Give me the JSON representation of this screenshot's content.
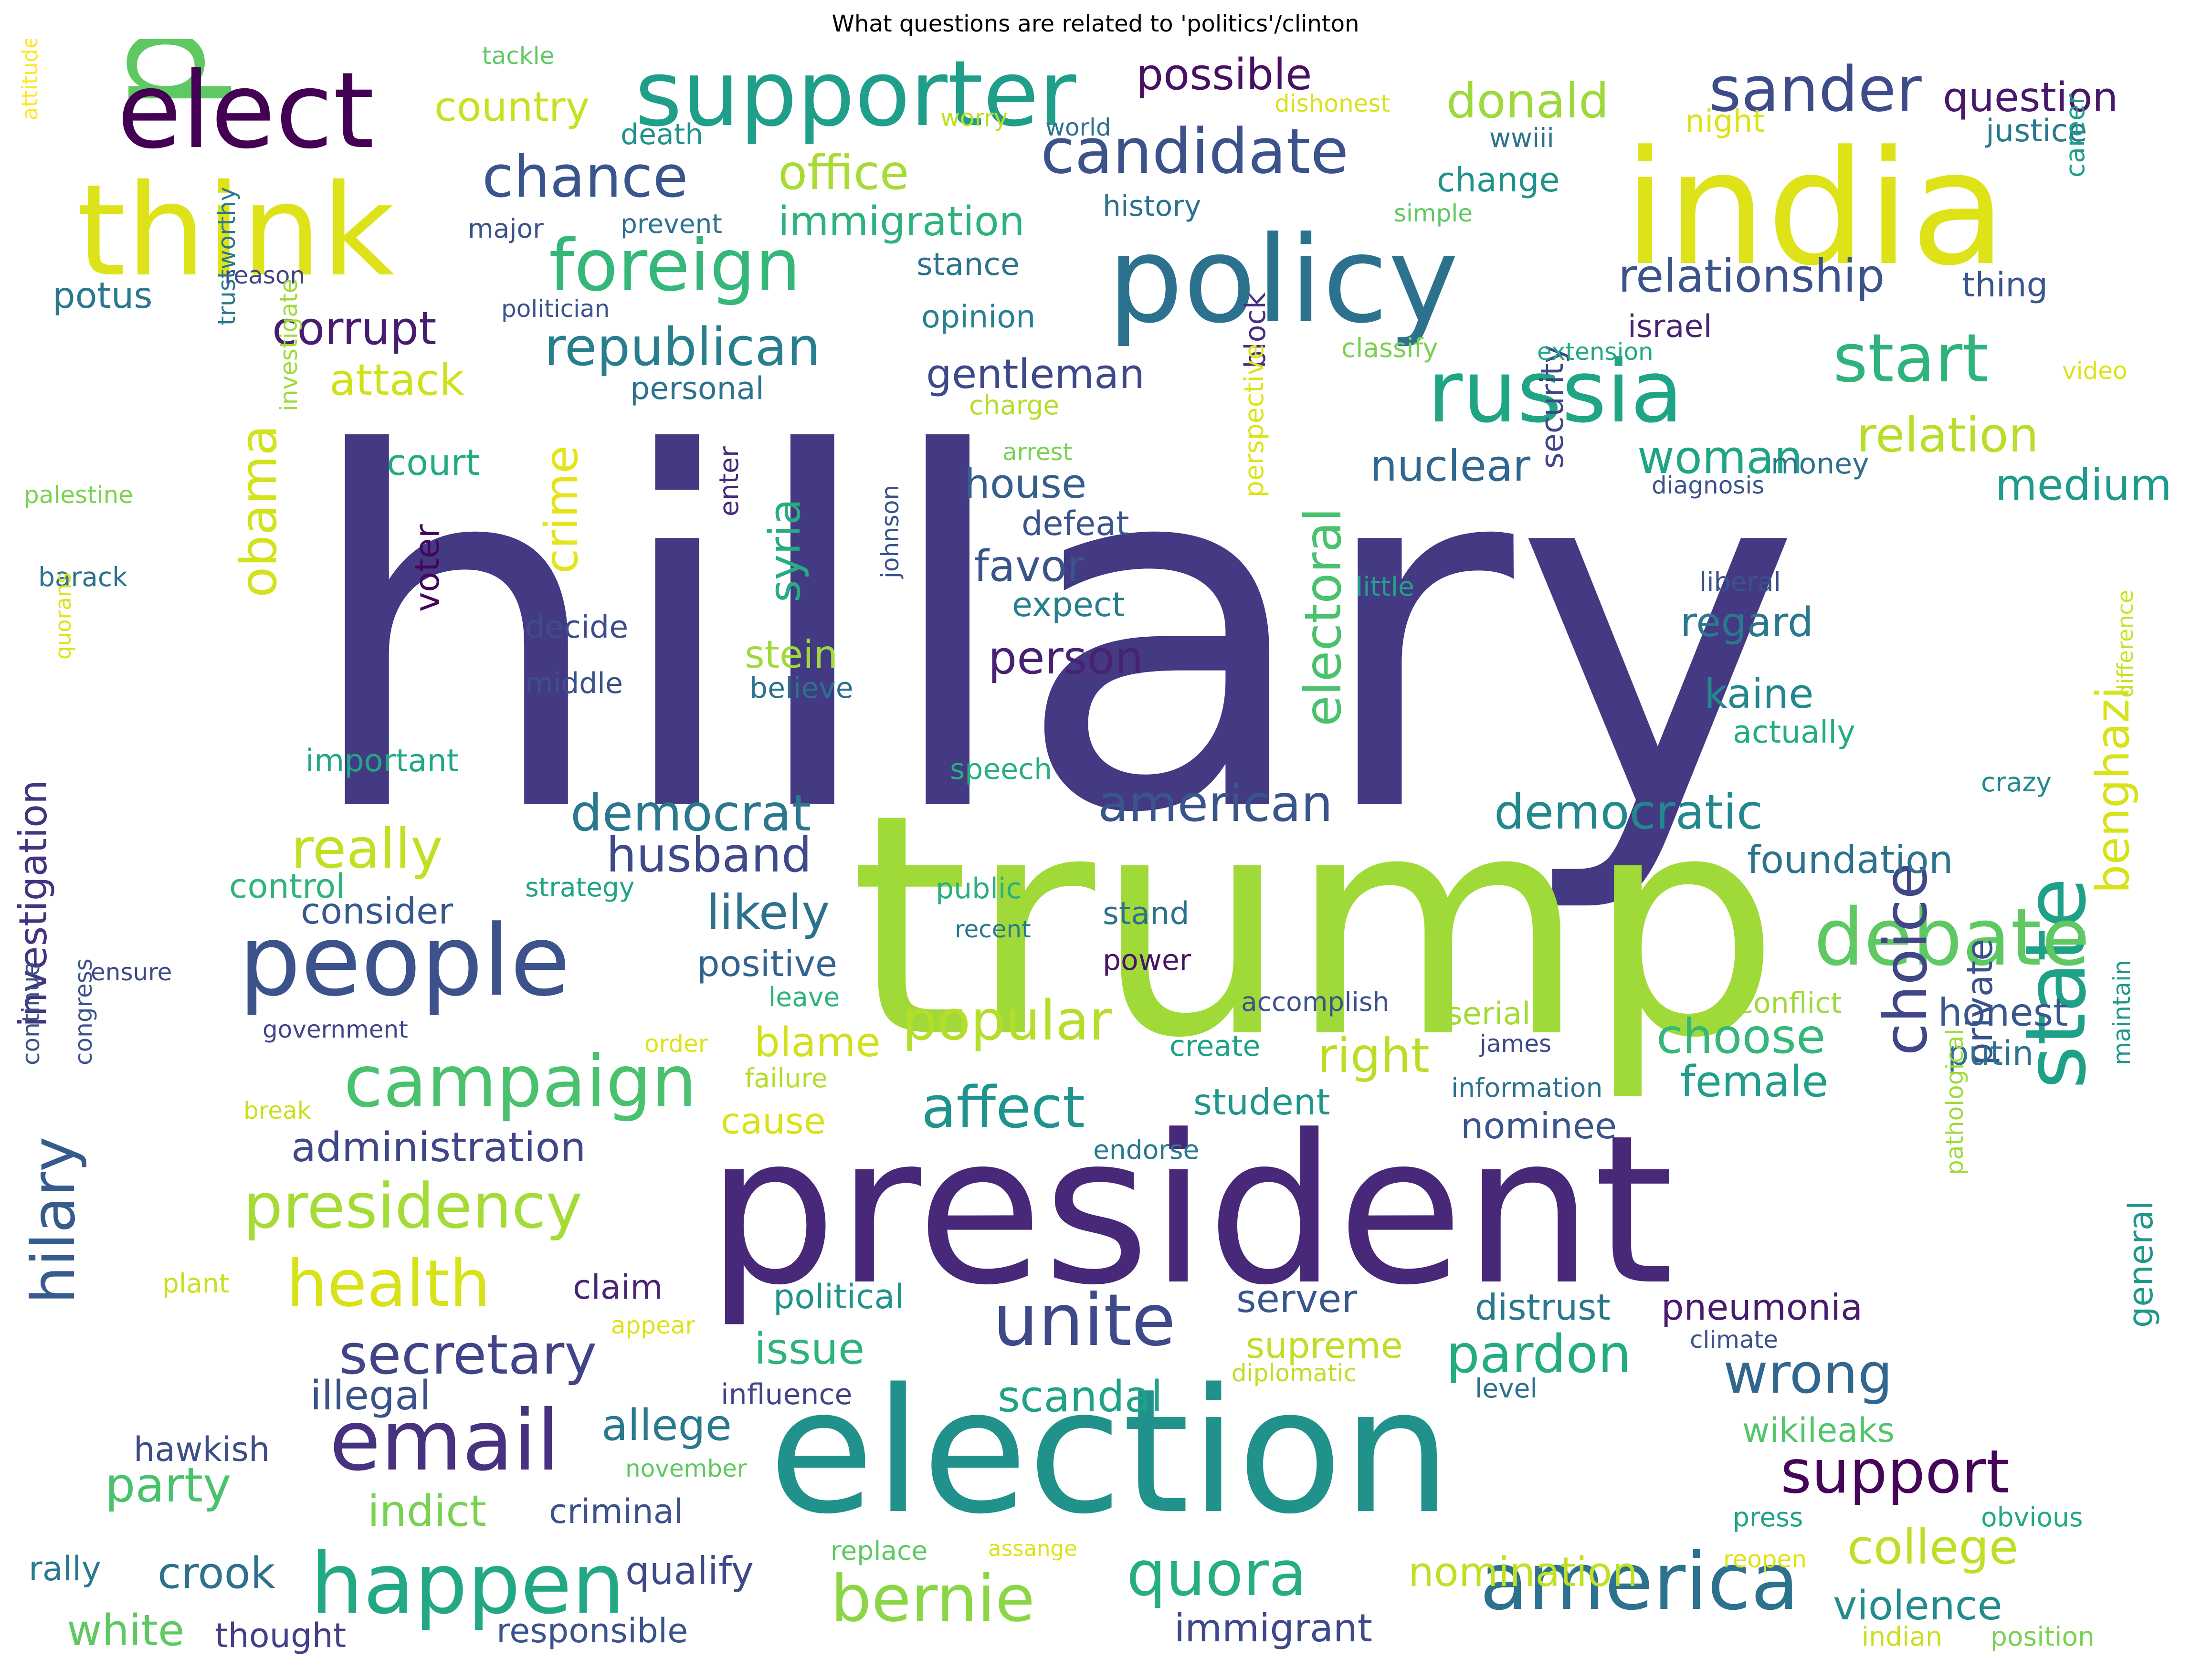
{
  "title": "What questions are related to 'politics'/clinton",
  "words": [
    {
      "text": "hillary",
      "color": "#443983"
    },
    {
      "text": "trump",
      "color": "#a0da39"
    },
    {
      "text": "president",
      "color": "#482878"
    },
    {
      "text": "election",
      "color": "#21918c"
    },
    {
      "text": "presidential",
      "color": "#5ec962"
    },
    {
      "text": "india",
      "color": "#dde318"
    },
    {
      "text": "policy",
      "color": "#2c728e"
    },
    {
      "text": "think",
      "color": "#dde318"
    },
    {
      "text": "elect",
      "color": "#440154"
    },
    {
      "text": "supporter",
      "color": "#1f9e89"
    },
    {
      "text": "people",
      "color": "#3b528b"
    },
    {
      "text": "russia",
      "color": "#20a486"
    },
    {
      "text": "state",
      "color": "#1fa187"
    },
    {
      "text": "debate",
      "color": "#5ec962"
    },
    {
      "text": "email",
      "color": "#46327e"
    },
    {
      "text": "happen",
      "color": "#22a884"
    },
    {
      "text": "america",
      "color": "#2c728e"
    },
    {
      "text": "foreign",
      "color": "#35b779"
    },
    {
      "text": "campaign",
      "color": "#4ac16d"
    },
    {
      "text": "unite",
      "color": "#3e4989"
    },
    {
      "text": "candidate",
      "color": "#3b528b"
    },
    {
      "text": "sander",
      "color": "#3e4c8a"
    },
    {
      "text": "start",
      "color": "#2eb37c"
    },
    {
      "text": "presidency",
      "color": "#a5db36"
    },
    {
      "text": "health",
      "color": "#d8e219"
    },
    {
      "text": "bernie",
      "color": "#8bd646"
    },
    {
      "text": "quora",
      "color": "#26ad81"
    },
    {
      "text": "choice",
      "color": "#404688"
    },
    {
      "text": "hilary",
      "color": "#365c8d"
    },
    {
      "text": "support",
      "color": "#450559"
    },
    {
      "text": "secretary",
      "color": "#414487"
    },
    {
      "text": "republican",
      "color": "#277f8e"
    },
    {
      "text": "chance",
      "color": "#39558c"
    },
    {
      "text": "wrong",
      "color": "#31668e"
    },
    {
      "text": "affect",
      "color": "#1f948c"
    },
    {
      "text": "pardon",
      "color": "#25ab82"
    },
    {
      "text": "popular",
      "color": "#b5de2b"
    },
    {
      "text": "democrat",
      "color": "#2a788e"
    },
    {
      "text": "american",
      "color": "#3a548c"
    },
    {
      "text": "democratic",
      "color": "#23888e"
    },
    {
      "text": "really",
      "color": "#c2df23"
    },
    {
      "text": "relationship",
      "color": "#3b528b"
    },
    {
      "text": "relation",
      "color": "#b8de29"
    },
    {
      "text": "office",
      "color": "#a8db34"
    },
    {
      "text": "immigration",
      "color": "#2db27d"
    },
    {
      "text": "donald",
      "color": "#9dd93b"
    },
    {
      "text": "possible",
      "color": "#471063"
    },
    {
      "text": "question",
      "color": "#48186a"
    },
    {
      "text": "college",
      "color": "#bddf26"
    },
    {
      "text": "obama",
      "color": "#d2e21b"
    },
    {
      "text": "electoral",
      "color": "#4ac16d"
    },
    {
      "text": "husband",
      "color": "#3e4a89"
    },
    {
      "text": "corrupt",
      "color": "#481d6f"
    },
    {
      "text": "country",
      "color": "#c8e020"
    },
    {
      "text": "woman",
      "color": "#20a486"
    },
    {
      "text": "syria",
      "color": "#27ad81"
    },
    {
      "text": "benghazi",
      "color": "#d8e219"
    },
    {
      "text": "person",
      "color": "#482173"
    },
    {
      "text": "choose",
      "color": "#35b779"
    },
    {
      "text": "right",
      "color": "#bade28"
    },
    {
      "text": "likely",
      "color": "#2c718e"
    },
    {
      "text": "medium",
      "color": "#1e9b8a"
    },
    {
      "text": "gentleman",
      "color": "#3e4989"
    },
    {
      "text": "nuclear",
      "color": "#31678e"
    },
    {
      "text": "violence",
      "color": "#228c8d"
    },
    {
      "text": "nomination",
      "color": "#c0df25"
    },
    {
      "text": "crime",
      "color": "#e5e419"
    },
    {
      "text": "attack",
      "color": "#d0e11c"
    },
    {
      "text": "investigation",
      "color": "#46337f"
    },
    {
      "text": "administration",
      "color": "#3f4788"
    },
    {
      "text": "favor",
      "color": "#3a538b"
    },
    {
      "text": "kaine",
      "color": "#24878e"
    },
    {
      "text": "female",
      "color": "#1f9e89"
    },
    {
      "text": "blame",
      "color": "#d0e11c"
    },
    {
      "text": "crook",
      "color": "#2d718e"
    },
    {
      "text": "indict",
      "color": "#7ad151"
    },
    {
      "text": "scandal",
      "color": "#1fa287"
    },
    {
      "text": "issue",
      "color": "#2eb37c"
    },
    {
      "text": "party",
      "color": "#4ac16d"
    },
    {
      "text": "white",
      "color": "#5ec962"
    },
    {
      "text": "allege",
      "color": "#2a788e"
    },
    {
      "text": "qualify",
      "color": "#3e4989"
    },
    {
      "text": "immigrant",
      "color": "#3e4989"
    },
    {
      "text": "house",
      "color": "#345f8d"
    },
    {
      "text": "stein",
      "color": "#9fda3a"
    },
    {
      "text": "regard",
      "color": "#2a788e"
    },
    {
      "text": "foundation",
      "color": "#2c728e"
    },
    {
      "text": "honest",
      "color": "#38588c"
    },
    {
      "text": "illegal",
      "color": "#3b528b"
    },
    {
      "text": "server",
      "color": "#39568c"
    },
    {
      "text": "supreme",
      "color": "#bddf26"
    },
    {
      "text": "distrust",
      "color": "#2a778e"
    },
    {
      "text": "pneumonia",
      "color": "#481b6d"
    },
    {
      "text": "private",
      "color": "#3b518b"
    },
    {
      "text": "general",
      "color": "#1f978b"
    },
    {
      "text": "potus",
      "color": "#2a788e"
    },
    {
      "text": "court",
      "color": "#24aa83"
    },
    {
      "text": "consider",
      "color": "#38598c"
    },
    {
      "text": "control",
      "color": "#30b47c"
    },
    {
      "text": "positive",
      "color": "#33638d"
    },
    {
      "text": "student",
      "color": "#1f968b"
    },
    {
      "text": "nominee",
      "color": "#3a548c"
    },
    {
      "text": "cause",
      "color": "#d8e219"
    },
    {
      "text": "wikileaks",
      "color": "#52c569"
    },
    {
      "text": "putin",
      "color": "#2d718e"
    },
    {
      "text": "responsible",
      "color": "#3a538b"
    },
    {
      "text": "thought",
      "color": "#424086"
    },
    {
      "text": "rally",
      "color": "#2a788e"
    },
    {
      "text": "criminal",
      "color": "#3b528b"
    },
    {
      "text": "political",
      "color": "#20938c"
    },
    {
      "text": "claim",
      "color": "#482475"
    },
    {
      "text": "influence",
      "color": "#414487"
    },
    {
      "text": "hawkish",
      "color": "#3d4d8a"
    },
    {
      "text": "important",
      "color": "#22a785"
    },
    {
      "text": "speech",
      "color": "#29af7f"
    },
    {
      "text": "public",
      "color": "#2ab07f"
    },
    {
      "text": "stand",
      "color": "#2d708e"
    },
    {
      "text": "power",
      "color": "#481467"
    },
    {
      "text": "leave",
      "color": "#2eb37c"
    },
    {
      "text": "serial",
      "color": "#a2da37"
    },
    {
      "text": "conflict",
      "color": "#9fda3a"
    },
    {
      "text": "actually",
      "color": "#25ac82"
    },
    {
      "text": "crazy",
      "color": "#23898e"
    },
    {
      "text": "strategy",
      "color": "#20a386"
    },
    {
      "text": "decide",
      "color": "#3d4d8a"
    },
    {
      "text": "middle",
      "color": "#3b518b"
    },
    {
      "text": "believe",
      "color": "#2c728e"
    },
    {
      "text": "expect",
      "color": "#277f8e"
    },
    {
      "text": "defeat",
      "color": "#3a538b"
    },
    {
      "text": "voter",
      "color": "#450559"
    },
    {
      "text": "enter",
      "color": "#482878"
    },
    {
      "text": "security",
      "color": "#404688"
    },
    {
      "text": "liberal",
      "color": "#3b528b"
    },
    {
      "text": "little",
      "color": "#20a386"
    },
    {
      "text": "block",
      "color": "#46307e"
    },
    {
      "text": "perspective",
      "color": "#dde318"
    },
    {
      "text": "johnson",
      "color": "#3a548c"
    },
    {
      "text": "money",
      "color": "#2d708e"
    },
    {
      "text": "diagnosis",
      "color": "#3b528b"
    },
    {
      "text": "israel",
      "color": "#482475"
    },
    {
      "text": "thing",
      "color": "#3a548c"
    },
    {
      "text": "video",
      "color": "#dde318"
    },
    {
      "text": "extension",
      "color": "#22a785"
    },
    {
      "text": "classify",
      "color": "#7ad151"
    },
    {
      "text": "personal",
      "color": "#2c728e"
    },
    {
      "text": "charge",
      "color": "#b5de2b"
    },
    {
      "text": "arrest",
      "color": "#7ad151"
    },
    {
      "text": "opinion",
      "color": "#26828e"
    },
    {
      "text": "stance",
      "color": "#2c728e"
    },
    {
      "text": "history",
      "color": "#2c728e"
    },
    {
      "text": "change",
      "color": "#21918c"
    },
    {
      "text": "simple",
      "color": "#5ec962"
    },
    {
      "text": "wwiii",
      "color": "#2c728e"
    },
    {
      "text": "night",
      "color": "#dde318"
    },
    {
      "text": "justice",
      "color": "#2a788e"
    },
    {
      "text": "career",
      "color": "#1f9e89"
    },
    {
      "text": "death",
      "color": "#21918c"
    },
    {
      "text": "worry",
      "color": "#bddf26"
    },
    {
      "text": "world",
      "color": "#2c728e"
    },
    {
      "text": "dishonest",
      "color": "#d8e219"
    },
    {
      "text": "tackle",
      "color": "#5ec962"
    },
    {
      "text": "prevent",
      "color": "#2c728e"
    },
    {
      "text": "major",
      "color": "#3b528b"
    },
    {
      "text": "reason",
      "color": "#414487"
    },
    {
      "text": "politician",
      "color": "#3b528b"
    },
    {
      "text": "attitude",
      "color": "#fde725"
    },
    {
      "text": "trustworthy",
      "color": "#2a788e"
    },
    {
      "text": "investigate",
      "color": "#a0da39"
    },
    {
      "text": "palestine",
      "color": "#7ad151"
    },
    {
      "text": "barack",
      "color": "#2c728e"
    },
    {
      "text": "quorans",
      "color": "#dde318"
    },
    {
      "text": "ensure",
      "color": "#3e4989"
    },
    {
      "text": "government",
      "color": "#414487"
    },
    {
      "text": "order",
      "color": "#dde318"
    },
    {
      "text": "failure",
      "color": "#b5de2b"
    },
    {
      "text": "break",
      "color": "#c8e020"
    },
    {
      "text": "continue",
      "color": "#3b528b"
    },
    {
      "text": "congress",
      "color": "#3b528b"
    },
    {
      "text": "plant",
      "color": "#c8e020"
    },
    {
      "text": "appear",
      "color": "#dde318"
    },
    {
      "text": "recent",
      "color": "#2a788e"
    },
    {
      "text": "accomplish",
      "color": "#3b528b"
    },
    {
      "text": "create",
      "color": "#1fa187"
    },
    {
      "text": "james",
      "color": "#3e4989"
    },
    {
      "text": "information",
      "color": "#2c728e"
    },
    {
      "text": "endorse",
      "color": "#2a788e"
    },
    {
      "text": "climate",
      "color": "#3b528b"
    },
    {
      "text": "diplomatic",
      "color": "#bddf26"
    },
    {
      "text": "level",
      "color": "#2c728e"
    },
    {
      "text": "november",
      "color": "#5ec962"
    },
    {
      "text": "replace",
      "color": "#5ec962"
    },
    {
      "text": "assange",
      "color": "#dde318"
    },
    {
      "text": "press",
      "color": "#20a386"
    },
    {
      "text": "obvious",
      "color": "#22a785"
    },
    {
      "text": "reopen",
      "color": "#dde318"
    },
    {
      "text": "indian",
      "color": "#c8e020"
    },
    {
      "text": "position",
      "color": "#7ad151"
    },
    {
      "text": "pathological",
      "color": "#a0da39"
    },
    {
      "text": "maintain",
      "color": "#1f978b"
    },
    {
      "text": "difference",
      "color": "#c8e020"
    }
  ]
}
